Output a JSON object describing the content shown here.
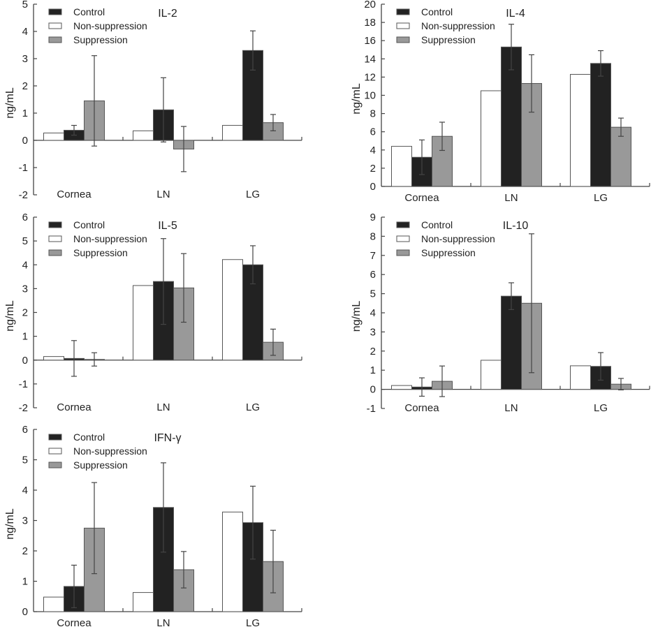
{
  "colors": {
    "Control": "#222222",
    "Non-suppression": "#ffffff",
    "Suppression": "#999999",
    "axis": "#444444",
    "error_bar": "#444444"
  },
  "legend": [
    "Control",
    "Non-suppression",
    "Suppression"
  ],
  "chart_data": [
    {
      "type": "bar",
      "title": "IL-2",
      "xlabel": "",
      "ylabel": "ng/mL",
      "ylim": [
        -2,
        5
      ],
      "yticks": [
        -2,
        -1,
        0,
        1,
        2,
        3,
        4,
        5
      ],
      "categories": [
        "Cornea",
        "LN",
        "LG"
      ],
      "legend_position": "top-left",
      "series": [
        {
          "name": "Non-suppression",
          "values": [
            0.27,
            0.35,
            0.55
          ],
          "errors": [
            null,
            null,
            null
          ]
        },
        {
          "name": "Control",
          "values": [
            0.37,
            1.12,
            3.3
          ],
          "errors": [
            0.18,
            1.18,
            0.72
          ]
        },
        {
          "name": "Suppression",
          "values": [
            1.45,
            -0.32,
            0.65
          ],
          "errors": [
            1.66,
            0.83,
            0.3
          ]
        }
      ]
    },
    {
      "type": "bar",
      "title": "IL-4",
      "xlabel": "",
      "ylabel": "ng/mL",
      "ylim": [
        0,
        20
      ],
      "yticks": [
        0,
        2,
        4,
        6,
        8,
        10,
        12,
        14,
        16,
        18,
        20
      ],
      "categories": [
        "Cornea",
        "LN",
        "LG"
      ],
      "legend_position": "top-left",
      "series": [
        {
          "name": "Non-suppression",
          "values": [
            4.4,
            10.5,
            12.3
          ],
          "errors": [
            null,
            null,
            null
          ]
        },
        {
          "name": "Control",
          "values": [
            3.2,
            15.3,
            13.5
          ],
          "errors": [
            1.9,
            2.5,
            1.4
          ]
        },
        {
          "name": "Suppression",
          "values": [
            5.5,
            11.3,
            6.5
          ],
          "errors": [
            1.55,
            3.15,
            1.0
          ]
        }
      ]
    },
    {
      "type": "bar",
      "title": "IL-5",
      "xlabel": "",
      "ylabel": "ng/mL",
      "ylim": [
        -2,
        6
      ],
      "yticks": [
        -2,
        -1,
        0,
        1,
        2,
        3,
        4,
        5,
        6
      ],
      "categories": [
        "Cornea",
        "LN",
        "LG"
      ],
      "legend_position": "top-left",
      "series": [
        {
          "name": "Non-suppression",
          "values": [
            0.15,
            3.13,
            4.22
          ],
          "errors": [
            null,
            null,
            null
          ]
        },
        {
          "name": "Control",
          "values": [
            0.07,
            3.3,
            4.0
          ],
          "errors": [
            0.75,
            1.8,
            0.8
          ]
        },
        {
          "name": "Suppression",
          "values": [
            0.03,
            3.03,
            0.75
          ],
          "errors": [
            0.28,
            1.44,
            0.55
          ]
        }
      ]
    },
    {
      "type": "bar",
      "title": "IL-10",
      "xlabel": "",
      "ylabel": "ng/mL",
      "ylim": [
        -1,
        9
      ],
      "yticks": [
        -1,
        0,
        1,
        2,
        3,
        4,
        5,
        6,
        7,
        8,
        9
      ],
      "categories": [
        "Cornea",
        "LN",
        "LG"
      ],
      "legend_position": "top-left",
      "series": [
        {
          "name": "Non-suppression",
          "values": [
            0.2,
            1.52,
            1.23
          ],
          "errors": [
            null,
            null,
            null
          ]
        },
        {
          "name": "Control",
          "values": [
            0.12,
            4.87,
            1.2
          ],
          "errors": [
            0.48,
            0.7,
            0.72
          ]
        },
        {
          "name": "Suppression",
          "values": [
            0.42,
            4.5,
            0.27
          ],
          "errors": [
            0.8,
            3.63,
            0.3
          ]
        }
      ]
    },
    {
      "type": "bar",
      "title": "IFN-γ",
      "xlabel": "",
      "ylabel": "ng/mL",
      "ylim": [
        0,
        6
      ],
      "yticks": [
        0,
        1,
        2,
        3,
        4,
        5,
        6
      ],
      "categories": [
        "Cornea",
        "LN",
        "LG"
      ],
      "legend_position": "top-left",
      "series": [
        {
          "name": "Non-suppression",
          "values": [
            0.48,
            0.63,
            3.28
          ],
          "errors": [
            null,
            null,
            null
          ]
        },
        {
          "name": "Control",
          "values": [
            0.83,
            3.43,
            2.93
          ],
          "errors": [
            0.7,
            1.47,
            1.2
          ]
        },
        {
          "name": "Suppression",
          "values": [
            2.75,
            1.38,
            1.65
          ],
          "errors": [
            1.5,
            0.6,
            1.03
          ]
        }
      ]
    }
  ]
}
